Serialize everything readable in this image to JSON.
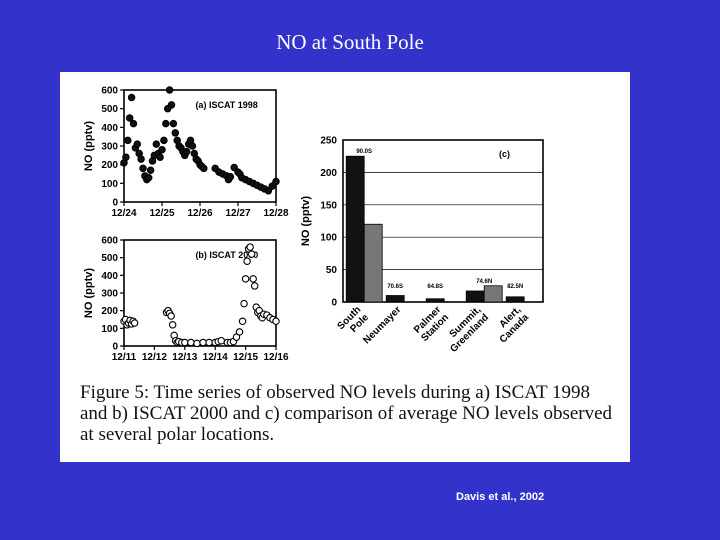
{
  "slide": {
    "title": "NO at South Pole",
    "citation": "Davis et al., 2002"
  },
  "figure": {
    "caption": "Figure 5:  Time series of observed NO levels during a) ISCAT 1998 and b) ISCAT 2000 and c) comparison of average NO levels observed at several polar locations."
  },
  "chart_data": [
    {
      "type": "scatter",
      "panel": "a",
      "title": "(a) ISCAT 1998",
      "ylabel": "NO (pptv)",
      "xlabel": "",
      "x_ticks": [
        "12/24",
        "12/25",
        "12/26",
        "12/27",
        "12/28"
      ],
      "y_ticks": [
        0,
        100,
        200,
        300,
        400,
        500,
        600
      ],
      "xlim": [
        0,
        4
      ],
      "ylim": [
        0,
        600
      ],
      "x": [
        0.0,
        0.05,
        0.1,
        0.15,
        0.2,
        0.25,
        0.3,
        0.35,
        0.4,
        0.45,
        0.5,
        0.55,
        0.6,
        0.65,
        0.7,
        0.75,
        0.8,
        0.85,
        0.9,
        0.95,
        1.0,
        1.05,
        1.1,
        1.15,
        1.2,
        1.25,
        1.3,
        1.35,
        1.4,
        1.45,
        1.5,
        1.55,
        1.6,
        1.65,
        1.7,
        1.75,
        1.8,
        1.85,
        1.9,
        1.95,
        2.0,
        2.05,
        2.1,
        2.4,
        2.5,
        2.6,
        2.7,
        2.75,
        2.8,
        2.9,
        3.0,
        3.05,
        3.1,
        3.2,
        3.3,
        3.4,
        3.5,
        3.6,
        3.7,
        3.8,
        3.9,
        4.0
      ],
      "y": [
        210,
        240,
        330,
        450,
        560,
        420,
        290,
        310,
        260,
        230,
        180,
        140,
        120,
        130,
        170,
        220,
        250,
        310,
        260,
        240,
        280,
        330,
        420,
        500,
        600,
        520,
        420,
        370,
        330,
        300,
        290,
        270,
        250,
        270,
        310,
        330,
        300,
        260,
        230,
        220,
        200,
        190,
        180,
        180,
        160,
        150,
        140,
        120,
        135,
        185,
        160,
        150,
        130,
        120,
        110,
        100,
        90,
        80,
        70,
        60,
        85,
        110
      ]
    },
    {
      "type": "scatter",
      "panel": "b",
      "title": "(b) ISCAT 2000",
      "ylabel": "NO (pptv)",
      "xlabel": "",
      "x_ticks": [
        "12/11",
        "12/12",
        "12/13",
        "12/14",
        "12/15",
        "12/16"
      ],
      "y_ticks": [
        0,
        100,
        200,
        300,
        400,
        500,
        600
      ],
      "xlim": [
        0,
        5
      ],
      "ylim": [
        0,
        600
      ],
      "x": [
        0.0,
        0.05,
        0.1,
        0.15,
        0.2,
        0.25,
        0.3,
        0.35,
        1.4,
        1.45,
        1.5,
        1.55,
        1.6,
        1.65,
        1.7,
        1.75,
        1.8,
        1.9,
        2.0,
        2.2,
        2.4,
        2.6,
        2.8,
        3.0,
        3.1,
        3.2,
        3.4,
        3.5,
        3.6,
        3.7,
        3.8,
        3.9,
        3.95,
        4.0,
        4.05,
        4.1,
        4.15,
        4.2,
        4.25,
        4.3,
        4.35,
        4.4,
        4.45,
        4.5,
        4.55,
        4.6,
        4.7,
        4.8,
        4.9,
        5.0
      ],
      "y": [
        140,
        150,
        120,
        130,
        145,
        125,
        140,
        130,
        190,
        200,
        185,
        170,
        120,
        60,
        30,
        20,
        25,
        20,
        20,
        20,
        15,
        20,
        20,
        20,
        25,
        30,
        20,
        20,
        25,
        50,
        80,
        140,
        240,
        380,
        480,
        550,
        560,
        520,
        380,
        340,
        220,
        190,
        200,
        170,
        160,
        180,
        175,
        160,
        150,
        140
      ]
    },
    {
      "type": "bar",
      "panel": "c",
      "title": "(c)",
      "ylabel": "NO (pptv)",
      "xlabel": "",
      "ylim": [
        0,
        250
      ],
      "y_ticks": [
        0,
        50,
        100,
        150,
        200,
        250
      ],
      "categories": [
        "South Pole",
        "Neumayer",
        "Palmer Station",
        "Summit, Greenland",
        "Alert, Canada"
      ],
      "latitude_labels": [
        "90.0S",
        "70.6S",
        "64.8S",
        "74.6N",
        "82.5N"
      ],
      "values": [
        225,
        10,
        5,
        17,
        8
      ],
      "second_values": [
        120,
        null,
        null,
        25,
        null
      ],
      "grid": true
    }
  ]
}
